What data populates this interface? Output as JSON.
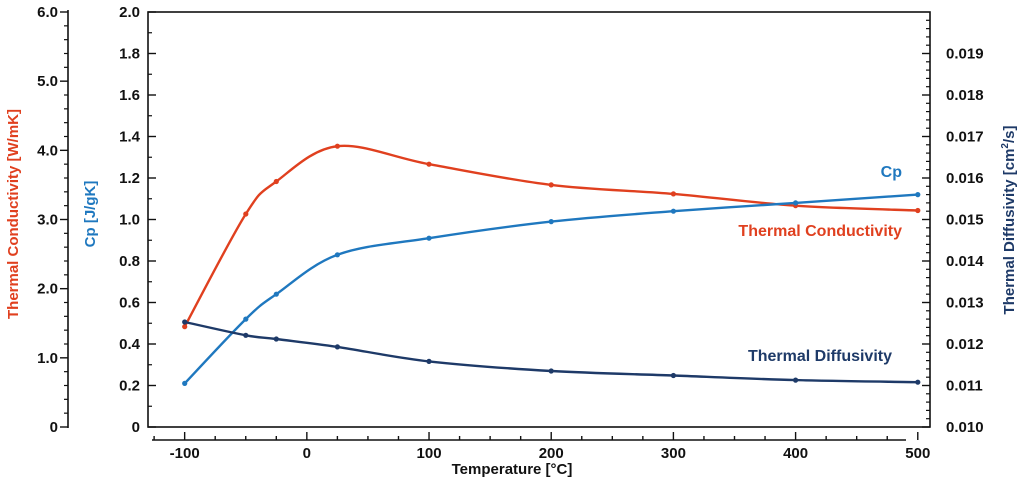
{
  "chart_data": {
    "type": "line",
    "xlabel": "Temperature [°C]",
    "x_ticks": [
      "-100",
      "0",
      "100",
      "200",
      "300",
      "400",
      "500"
    ],
    "xlim": [
      -130,
      510
    ],
    "axes": {
      "tc": {
        "label": "Thermal Conductivity [W/mK]",
        "color": "#e0401f",
        "ylim": [
          0,
          6.0
        ],
        "tick_labels": [
          "0",
          "1.0",
          "2.0",
          "3.0",
          "4.0",
          "5.0",
          "6.0"
        ]
      },
      "cp": {
        "label": "Cp [J/gK]",
        "color": "#1f78bf",
        "ylim": [
          0,
          2.0
        ],
        "tick_labels": [
          "0",
          "0.2",
          "0.4",
          "0.6",
          "0.8",
          "1.0",
          "1.2",
          "1.4",
          "1.6",
          "1.8",
          "2.0"
        ]
      },
      "td": {
        "label_main": "Thermal Diffusivity [cm",
        "label_sup": "2",
        "label_end": "/s]",
        "color": "#1e3a68",
        "ylim": [
          0.01,
          0.02
        ],
        "tick_labels": [
          "0.010",
          "0.011",
          "0.012",
          "0.013",
          "0.014",
          "0.015",
          "0.016",
          "0.017",
          "0.018",
          "0.019"
        ]
      }
    },
    "series": [
      {
        "name": "Thermal Conductivity",
        "axis": "tc",
        "color": "#e0401f",
        "x": [
          -100,
          -50,
          -25,
          25,
          100,
          200,
          300,
          400,
          500
        ],
        "y": [
          1.45,
          3.08,
          3.55,
          4.06,
          3.8,
          3.5,
          3.37,
          3.2,
          3.13
        ]
      },
      {
        "name": "Cp",
        "axis": "cp",
        "color": "#1f78bf",
        "x": [
          -100,
          -50,
          -25,
          25,
          100,
          200,
          300,
          400,
          500
        ],
        "y": [
          0.21,
          0.52,
          0.64,
          0.83,
          0.91,
          0.99,
          1.04,
          1.08,
          1.12
        ]
      },
      {
        "name": "Thermal Diffusivity",
        "axis": "td",
        "color": "#1e3a68",
        "x": [
          -100,
          -50,
          -25,
          25,
          100,
          200,
          300,
          400,
          500
        ],
        "y": [
          0.01253,
          0.01221,
          0.01212,
          0.01193,
          0.01158,
          0.01135,
          0.01124,
          0.01113,
          0.01108
        ]
      }
    ],
    "series_labels": {
      "cp": "Cp",
      "tc": "Thermal Conductivity",
      "td": "Thermal Diffusivity"
    }
  }
}
